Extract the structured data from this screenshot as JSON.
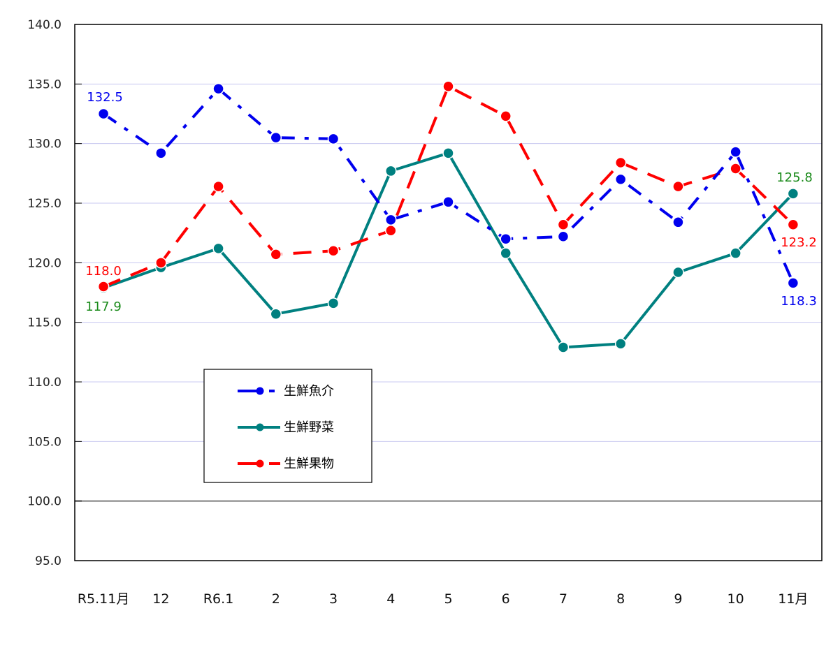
{
  "chart_data": {
    "type": "line",
    "title": "",
    "xlabel": "",
    "ylabel": "",
    "categories": [
      "R5.11月",
      "12",
      "R6.1",
      "2",
      "3",
      "4",
      "5",
      "6",
      "7",
      "8",
      "9",
      "10",
      "11月"
    ],
    "ylim": [
      95.0,
      140.0
    ],
    "yticks": [
      "140.0",
      "135.0",
      "130.0",
      "125.0",
      "120.0",
      "115.0",
      "110.0",
      "105.0",
      "100.0",
      "95.0"
    ],
    "reference_line": 100.0,
    "grid": true,
    "legend_position": "inside-lower-left",
    "series": [
      {
        "name": "生鮮魚介",
        "color": "#0000ee",
        "dash": "dash-dot",
        "values": [
          132.5,
          129.2,
          134.6,
          130.5,
          130.4,
          123.6,
          125.1,
          122.0,
          122.2,
          127.0,
          123.4,
          129.3,
          118.3
        ],
        "labels": {
          "first": "132.5",
          "last": "118.3"
        }
      },
      {
        "name": "生鮮野菜",
        "color": "#008080",
        "dash": "solid",
        "values": [
          117.9,
          119.6,
          121.2,
          115.7,
          116.6,
          127.7,
          129.2,
          120.8,
          112.9,
          113.2,
          119.2,
          120.8,
          125.8
        ],
        "labels": {
          "first": "117.9",
          "last": "125.8"
        }
      },
      {
        "name": "生鮮果物",
        "color": "#ff0000",
        "dash": "dash",
        "values": [
          118.0,
          120.0,
          126.4,
          120.7,
          121.0,
          122.7,
          134.8,
          132.3,
          123.2,
          128.4,
          126.4,
          127.9,
          123.2
        ],
        "labels": {
          "first": "118.0",
          "last": "123.2"
        }
      }
    ]
  },
  "legend": {
    "items": [
      {
        "label": "生鮮魚介"
      },
      {
        "label": "生鮮野菜"
      },
      {
        "label": "生鮮果物"
      }
    ]
  },
  "data_labels": {
    "seafood_first": "132.5",
    "seafood_last": "118.3",
    "vegetables_first": "117.9",
    "vegetables_last": "125.8",
    "fruit_first": "118.0",
    "fruit_last": "123.2"
  },
  "colors": {
    "seafood": "#0000ee",
    "vegetables": "#008080",
    "fruit": "#ff0000",
    "gridline": "#c8c8f0",
    "baseline": "#999999",
    "vegetables_label": "#1a8a1a"
  }
}
